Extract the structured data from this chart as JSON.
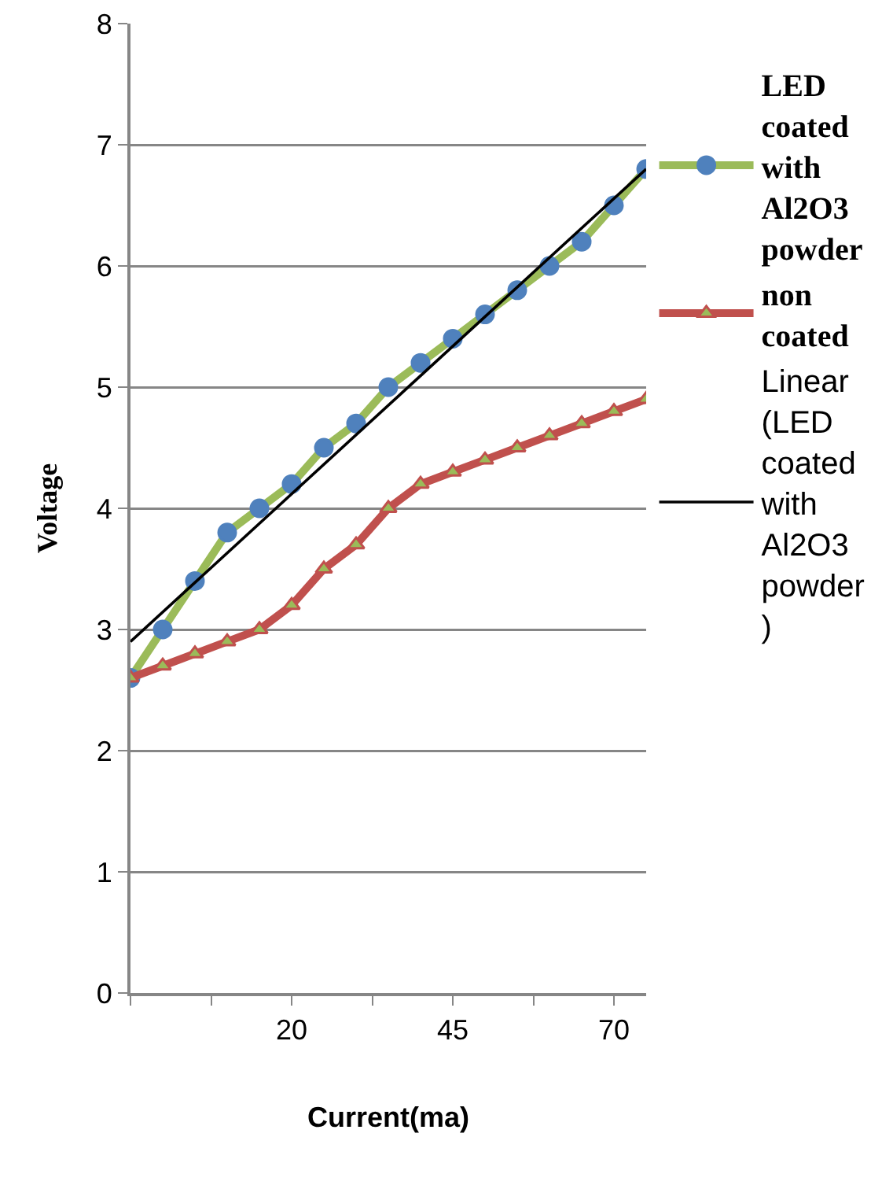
{
  "chart_data": {
    "type": "line",
    "xlabel": "Current(ma)",
    "ylabel": "Voltage",
    "x": [
      -5,
      0,
      5,
      10,
      15,
      20,
      25,
      30,
      35,
      40,
      45,
      50,
      55,
      60,
      65,
      70,
      75
    ],
    "series": [
      {
        "name": "LED coated with Al2O3 powder",
        "color": "#9bbb59",
        "colors": [
          "#4f81bd",
          "#4f81bd",
          "#4f81bd",
          "#4f81bd",
          "#4f81bd",
          "#4f81bd",
          "#4f81bd",
          "#4f81bd",
          "#4f81bd",
          "#4f81bd",
          "#4f81bd",
          "#4f81bd",
          "#4f81bd",
          "#4f81bd",
          "#4f81bd",
          "#4f81bd",
          "#4f81bd"
        ],
        "marker": "circle",
        "values": [
          2.6,
          3.0,
          3.4,
          3.8,
          4.0,
          4.2,
          4.5,
          4.7,
          5.0,
          5.2,
          5.4,
          5.6,
          5.8,
          6.0,
          6.2,
          6.5,
          6.8
        ]
      },
      {
        "name": "non coated",
        "color": "#c0504d",
        "colors": [
          "#9bbb59",
          "#9bbb59",
          "#9bbb59",
          "#9bbb59",
          "#9bbb59",
          "#9bbb59",
          "#9bbb59",
          "#9bbb59",
          "#9bbb59",
          "#9bbb59",
          "#9bbb59",
          "#9bbb59",
          "#9bbb59",
          "#9bbb59",
          "#9bbb59",
          "#9bbb59",
          "#9bbb59"
        ],
        "marker": "triangle",
        "values": [
          2.6,
          2.7,
          2.8,
          2.9,
          3.0,
          3.2,
          3.5,
          3.7,
          4.0,
          4.2,
          4.3,
          4.4,
          4.5,
          4.6,
          4.7,
          4.8,
          4.9
        ]
      },
      {
        "name": "Linear (LED coated with Al2O3 powder )",
        "type": "line",
        "color": "#000000",
        "marker": "none",
        "x": [
          -5,
          75
        ],
        "values": [
          2.9,
          6.8
        ]
      }
    ],
    "xlim": [
      -5,
      75
    ],
    "xticks": [
      {
        "value": -5,
        "label": null
      },
      {
        "value": 7.5,
        "label": null
      },
      20,
      {
        "value": 32.5,
        "label": null
      },
      45,
      {
        "value": 57.5,
        "label": null
      },
      70
    ],
    "ylim": [
      0,
      8
    ],
    "yticks": [
      0,
      1,
      2,
      3,
      4,
      5,
      6,
      7,
      8
    ],
    "grid": "y",
    "legend": "top right"
  }
}
